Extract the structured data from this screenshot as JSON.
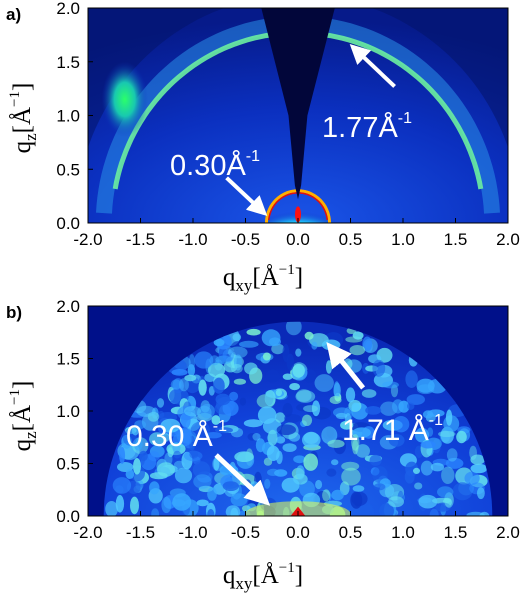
{
  "chart_data": [
    {
      "type": "heatmap",
      "panel_label": "a)",
      "xlabel": "q_xy[Å^-1]",
      "ylabel": "q_z[Å^-1]",
      "xlim": [
        -2.0,
        2.0
      ],
      "ylim": [
        0.0,
        2.0
      ],
      "x_ticks": [
        "-2.0",
        "-1.5",
        "-1.0",
        "-0.5",
        "0.0",
        "0.5",
        "1.0",
        "1.5",
        "2.0"
      ],
      "y_ticks": [
        "0.0",
        "0.5",
        "1.0",
        "1.5",
        "2.0"
      ],
      "colormap": "jet",
      "features": [
        {
          "label": "1.77Å",
          "superscript": "-1",
          "q": 1.77
        },
        {
          "label": "0.30Å",
          "superscript": "-1",
          "q": 0.3
        }
      ]
    },
    {
      "type": "heatmap",
      "panel_label": "b)",
      "xlabel": "q_xy[Å^-1]",
      "ylabel": "q_z[Å^-1]",
      "xlim": [
        -2.0,
        2.0
      ],
      "ylim": [
        0.0,
        2.0
      ],
      "x_ticks": [
        "-2.0",
        "-1.5",
        "-1.0",
        "-0.5",
        "0.0",
        "0.5",
        "1.0",
        "1.5",
        "2.0"
      ],
      "y_ticks": [
        "0.0",
        "0.5",
        "1.0",
        "1.5",
        "2.0"
      ],
      "colormap": "jet",
      "features": [
        {
          "label": "1.71 Å",
          "superscript": "-1",
          "q": 1.71
        },
        {
          "label": "0.30 Å",
          "superscript": "-1",
          "q": 0.3
        }
      ]
    }
  ],
  "axis_text": {
    "q": "q",
    "sub_xy": "xy",
    "sub_z": "z",
    "bracket_open": "[Å",
    "exp": "−1",
    "bracket_close": "]"
  },
  "colors": {
    "background_dark": "#00108a",
    "background_mid": "#0a3fd0",
    "ring": "#6cf0a0",
    "hot": "#e01010",
    "beamstop": "#02063a",
    "annotation": "#ffffff"
  }
}
